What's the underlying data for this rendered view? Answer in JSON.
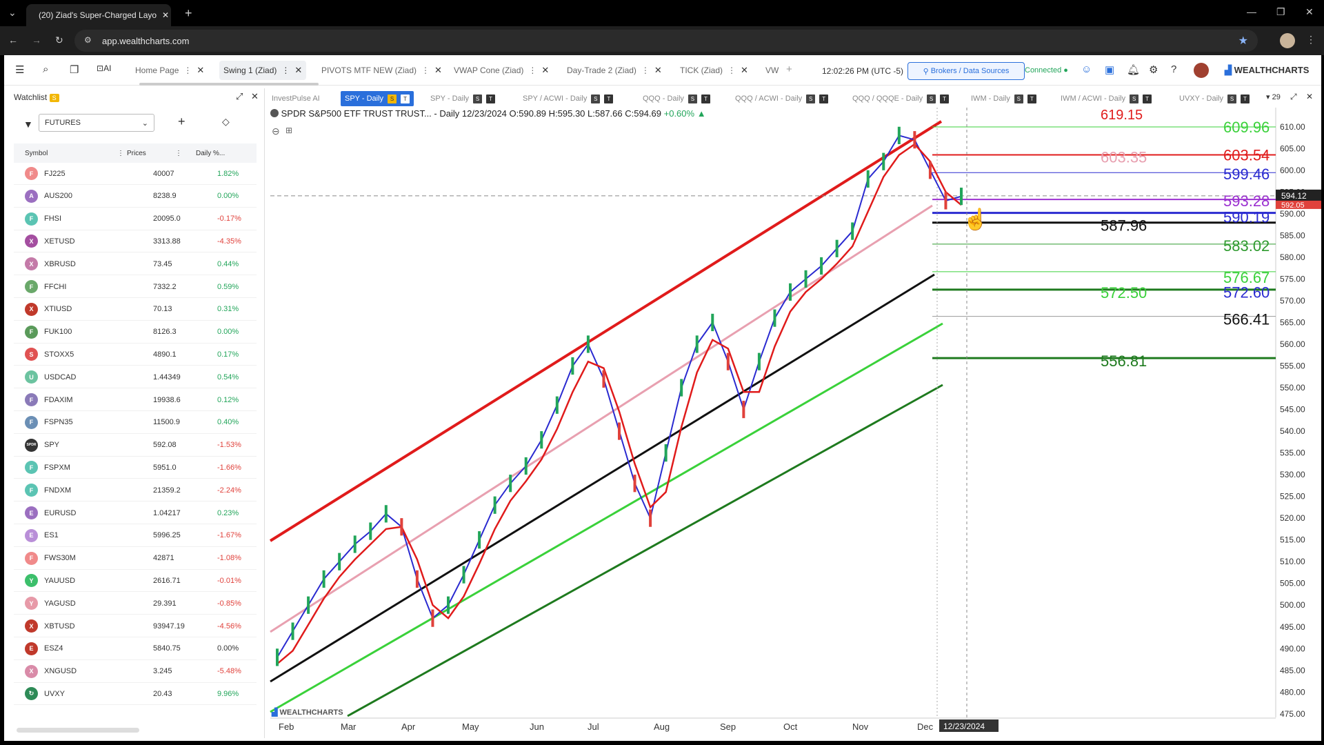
{
  "browser": {
    "tab_title": "(20) Ziad's Super-Charged Layo",
    "url": "app.wealthcharts.com"
  },
  "app": {
    "layout_tabs": [
      {
        "label": "Home Page",
        "active": false
      },
      {
        "label": "Swing 1 (Ziad)",
        "active": true
      },
      {
        "label": "PIVOTS MTF NEW (Ziad)",
        "active": false
      },
      {
        "label": "VWAP Cone (Ziad)",
        "active": false
      },
      {
        "label": "Day-Trade 2 (Ziad)",
        "active": false
      },
      {
        "label": "TICK (Ziad)",
        "active": false
      },
      {
        "label": "VW",
        "active": false
      }
    ],
    "ai_label": "AI",
    "clock": "12:02:26 PM",
    "timezone": "(UTC -5)",
    "brokers_button": "Brokers / Data Sources",
    "connected_label": "Connected",
    "brand": "WEALTHCHARTS"
  },
  "watchlist": {
    "title": "Watchlist",
    "badge": "S",
    "filter_value": "FUTURES",
    "columns": [
      "Symbol",
      "Prices",
      "Daily %..."
    ],
    "rows": [
      {
        "letter": "F",
        "color": "#f08a8a",
        "symbol": "FJ225",
        "price": "40007",
        "change": "1.82%"
      },
      {
        "letter": "A",
        "color": "#9b6fc0",
        "symbol": "AUS200",
        "price": "8238.9",
        "change": "0.00%"
      },
      {
        "letter": "F",
        "color": "#5bc4b3",
        "symbol": "FHSI",
        "price": "20095.0",
        "change": "-0.17%"
      },
      {
        "letter": "X",
        "color": "#a44ea0",
        "symbol": "XETUSD",
        "price": "3313.88",
        "change": "-4.35%"
      },
      {
        "letter": "X",
        "color": "#c47aa8",
        "symbol": "XBRUSD",
        "price": "73.45",
        "change": "0.44%"
      },
      {
        "letter": "F",
        "color": "#6aa86a",
        "symbol": "FFCHI",
        "price": "7332.2",
        "change": "0.59%"
      },
      {
        "letter": "X",
        "color": "#c0392b",
        "symbol": "XTIUSD",
        "price": "70.13",
        "change": "0.31%"
      },
      {
        "letter": "F",
        "color": "#5a9a5a",
        "symbol": "FUK100",
        "price": "8126.3",
        "change": "0.00%"
      },
      {
        "letter": "S",
        "color": "#e05252",
        "symbol": "STOXX5",
        "price": "4890.1",
        "change": "0.17%"
      },
      {
        "letter": "U",
        "color": "#6cc3a0",
        "symbol": "USDCAD",
        "price": "1.44349",
        "change": "0.54%"
      },
      {
        "letter": "F",
        "color": "#8a7ab8",
        "symbol": "FDAXIM",
        "price": "19938.6",
        "change": "0.12%"
      },
      {
        "letter": "F",
        "color": "#6b8fb5",
        "symbol": "FSPN35",
        "price": "11500.9",
        "change": "0.40%"
      },
      {
        "letter": "SPDR",
        "color": "#333333",
        "symbol": "SPY",
        "price": "592.08",
        "change": "-1.53%"
      },
      {
        "letter": "F",
        "color": "#5bc4b3",
        "symbol": "FSPXM",
        "price": "5951.0",
        "change": "-1.66%"
      },
      {
        "letter": "F",
        "color": "#5bc4b3",
        "symbol": "FNDXM",
        "price": "21359.2",
        "change": "-2.24%"
      },
      {
        "letter": "E",
        "color": "#9b6fc0",
        "symbol": "EURUSD",
        "price": "1.04217",
        "change": "0.23%"
      },
      {
        "letter": "E",
        "color": "#b98fd8",
        "symbol": "ES1",
        "price": "5996.25",
        "change": "-1.67%"
      },
      {
        "letter": "F",
        "color": "#f08a8a",
        "symbol": "FWS30M",
        "price": "42871",
        "change": "-1.08%"
      },
      {
        "letter": "Y",
        "color": "#3cbf6b",
        "symbol": "YAUUSD",
        "price": "2616.71",
        "change": "-0.01%"
      },
      {
        "letter": "Y",
        "color": "#e79aa8",
        "symbol": "YAGUSD",
        "price": "29.391",
        "change": "-0.85%"
      },
      {
        "letter": "X",
        "color": "#c0392b",
        "symbol": "XBTUSD",
        "price": "93947.19",
        "change": "-4.56%"
      },
      {
        "letter": "E",
        "color": "#c0392b",
        "symbol": "ESZ4",
        "price": "5840.75",
        "change": "0.00%"
      },
      {
        "letter": "X",
        "color": "#d98ba8",
        "symbol": "XNGUSD",
        "price": "3.245",
        "change": "-5.48%"
      },
      {
        "letter": "↻",
        "color": "#2e8b57",
        "symbol": "UVXY",
        "price": "20.43",
        "change": "9.96%"
      }
    ]
  },
  "chart_tabs": [
    {
      "label": "InvestPulse AI",
      "active": false,
      "tags": false
    },
    {
      "label": "SPY - Daily",
      "active": true,
      "tags": true
    },
    {
      "label": "SPY - Daily",
      "active": false,
      "tags": true
    },
    {
      "label": "SPY / ACWI - Daily",
      "active": false,
      "tags": true
    },
    {
      "label": "QQQ - Daily",
      "active": false,
      "tags": true
    },
    {
      "label": "QQQ / ACWI - Daily",
      "active": false,
      "tags": true
    },
    {
      "label": "QQQ / QQQE - Daily",
      "active": false,
      "tags": true
    },
    {
      "label": "IWM - Daily",
      "active": false,
      "tags": true
    },
    {
      "label": "IWM / ACWI - Daily",
      "active": false,
      "tags": true
    },
    {
      "label": "UVXY - Daily",
      "active": false,
      "tags": true
    }
  ],
  "chart_tab_count": "29",
  "chart": {
    "symbol_line": "SPDR S&P500 ETF TRUST TRUST... - Daily 12/23/2024",
    "ohlc": "O:590.89 H:595.30 L:587.66 C:594.69",
    "change": "+0.60%",
    "current_price_label": "594.12",
    "last_label": "592.05",
    "date_marker": "12/23/2024",
    "watermark": "WEALTHCHARTS"
  },
  "chart_data": {
    "type": "line",
    "x": [
      "Feb",
      "Mar",
      "Apr",
      "May",
      "Jun",
      "Jul",
      "Aug",
      "Sep",
      "Oct",
      "Nov",
      "Dec"
    ],
    "ylim": [
      475,
      615
    ],
    "yticks": [
      "610.00",
      "605.00",
      "600.00",
      "595.00",
      "590.00",
      "585.00",
      "580.00",
      "575.00",
      "570.00",
      "565.00",
      "560.00",
      "555.00",
      "550.00",
      "545.00",
      "540.00",
      "535.00",
      "530.00",
      "525.00",
      "520.00",
      "515.00",
      "510.00",
      "505.00",
      "500.00",
      "495.00",
      "490.00",
      "485.00",
      "480.00",
      "475.00"
    ],
    "price_series": [
      488,
      494,
      500,
      506,
      510,
      514,
      517,
      521,
      518,
      506,
      497,
      500,
      507,
      515,
      523,
      528,
      532,
      538,
      546,
      555,
      560,
      552,
      540,
      528,
      520,
      535,
      550,
      560,
      565,
      556,
      545,
      556,
      566,
      572,
      575,
      578,
      582,
      586,
      598,
      602,
      608,
      607,
      600,
      593,
      594
    ],
    "levels": [
      {
        "value": "609.96",
        "color": "#3ad13a"
      },
      {
        "value": "603.54",
        "color": "#e01b1b"
      },
      {
        "value": "603.35",
        "color": "#e8a0b0"
      },
      {
        "value": "599.46",
        "color": "#2a2ad0"
      },
      {
        "value": "593.28",
        "color": "#9b30d0"
      },
      {
        "value": "590.19",
        "color": "#2a2ad0"
      },
      {
        "value": "587.96",
        "color": "#111111"
      },
      {
        "value": "583.02",
        "color": "#2e9a2e"
      },
      {
        "value": "576.67",
        "color": "#3ad13a"
      },
      {
        "value": "572.50",
        "color": "#3ad13a"
      },
      {
        "value": "572.60",
        "color": "#2a2ad0"
      },
      {
        "value": "566.41",
        "color": "#111111"
      },
      {
        "value": "556.81",
        "color": "#1e7a1e"
      }
    ],
    "top_clipped_label": "619.15"
  }
}
